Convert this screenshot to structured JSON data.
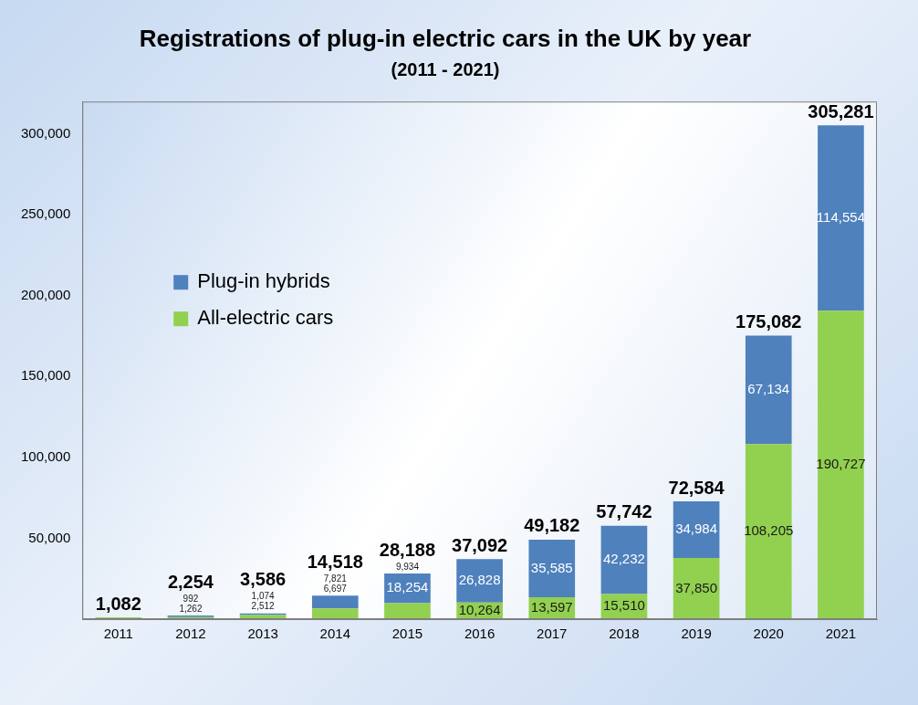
{
  "chart_data": {
    "type": "bar",
    "title": "Registrations of plug-in electric cars in the UK by year",
    "subtitle": "(2011 - 2021)",
    "categories": [
      "2011",
      "2012",
      "2013",
      "2014",
      "2015",
      "2016",
      "2017",
      "2018",
      "2019",
      "2020",
      "2021"
    ],
    "series": [
      {
        "name": "Plug-in hybrids",
        "color": "#4f81bd",
        "values": [
          0,
          992,
          1074,
          7821,
          18254,
          26828,
          35585,
          42232,
          34984,
          67134,
          114554
        ],
        "value_labels": [
          null,
          "992",
          "1,074",
          "7,821",
          "18,254",
          "26,828",
          "35,585",
          "42,232",
          "34,984",
          "67,134",
          "114,554"
        ]
      },
      {
        "name": "All-electric cars",
        "color": "#92d050",
        "values": [
          1082,
          1262,
          2512,
          6697,
          9934,
          10264,
          13597,
          15510,
          37850,
          108205,
          190727
        ],
        "value_labels": [
          null,
          "1,262",
          "2,512",
          "6,697",
          "9,934",
          "10,264",
          "13,597",
          "15,510",
          "37,850",
          "108,205",
          "190,727"
        ]
      }
    ],
    "totals": [
      1082,
      2254,
      3586,
      14518,
      28188,
      37092,
      49182,
      57742,
      72584,
      175082,
      305281
    ],
    "total_labels": [
      "1,082",
      "2,254",
      "3,586",
      "14,518",
      "28,188",
      "37,092",
      "49,182",
      "57,742",
      "72,584",
      "175,082",
      "305,281"
    ],
    "stacked": true,
    "data_labels": true,
    "legend": "upper left",
    "grid": false,
    "ylim": [
      0,
      320000
    ],
    "yticks": [
      {
        "value": 50000,
        "label": "50,000"
      },
      {
        "value": 100000,
        "label": "100,000"
      },
      {
        "value": 150000,
        "label": "150,000"
      },
      {
        "value": 200000,
        "label": "200,000"
      },
      {
        "value": 250000,
        "label": "250,000"
      },
      {
        "value": 300000,
        "label": "300,000"
      }
    ]
  }
}
